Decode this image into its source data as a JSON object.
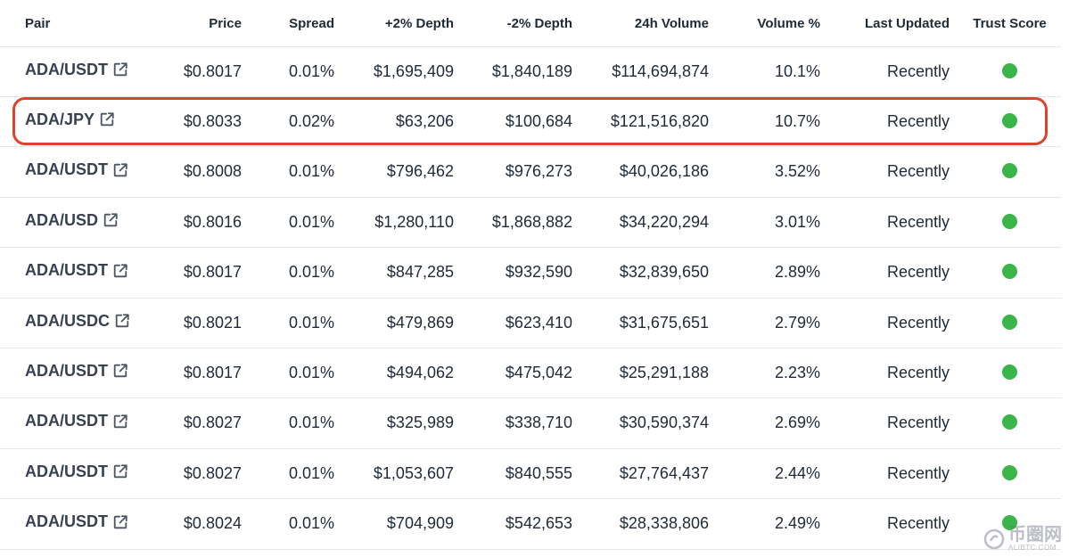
{
  "columns": {
    "pair": "Pair",
    "price": "Price",
    "spread": "Spread",
    "plus_depth": "+2% Depth",
    "minus_depth": "-2% Depth",
    "volume": "24h Volume",
    "volume_pct": "Volume %",
    "last_updated": "Last Updated",
    "trust_score": "Trust Score"
  },
  "rows": [
    {
      "pair": "ADA/USDT",
      "price": "$0.8017",
      "spread": "0.01%",
      "plus_depth": "$1,695,409",
      "minus_depth": "$1,840,189",
      "volume": "$114,694,874",
      "volume_pct": "10.1%",
      "last_updated": "Recently",
      "trust": "green"
    },
    {
      "pair": "ADA/JPY",
      "price": "$0.8033",
      "spread": "0.02%",
      "plus_depth": "$63,206",
      "minus_depth": "$100,684",
      "volume": "$121,516,820",
      "volume_pct": "10.7%",
      "last_updated": "Recently",
      "trust": "green"
    },
    {
      "pair": "ADA/USDT",
      "price": "$0.8008",
      "spread": "0.01%",
      "plus_depth": "$796,462",
      "minus_depth": "$976,273",
      "volume": "$40,026,186",
      "volume_pct": "3.52%",
      "last_updated": "Recently",
      "trust": "green"
    },
    {
      "pair": "ADA/USD",
      "price": "$0.8016",
      "spread": "0.01%",
      "plus_depth": "$1,280,110",
      "minus_depth": "$1,868,882",
      "volume": "$34,220,294",
      "volume_pct": "3.01%",
      "last_updated": "Recently",
      "trust": "green"
    },
    {
      "pair": "ADA/USDT",
      "price": "$0.8017",
      "spread": "0.01%",
      "plus_depth": "$847,285",
      "minus_depth": "$932,590",
      "volume": "$32,839,650",
      "volume_pct": "2.89%",
      "last_updated": "Recently",
      "trust": "green"
    },
    {
      "pair": "ADA/USDC",
      "price": "$0.8021",
      "spread": "0.01%",
      "plus_depth": "$479,869",
      "minus_depth": "$623,410",
      "volume": "$31,675,651",
      "volume_pct": "2.79%",
      "last_updated": "Recently",
      "trust": "green"
    },
    {
      "pair": "ADA/USDT",
      "price": "$0.8017",
      "spread": "0.01%",
      "plus_depth": "$494,062",
      "minus_depth": "$475,042",
      "volume": "$25,291,188",
      "volume_pct": "2.23%",
      "last_updated": "Recently",
      "trust": "green"
    },
    {
      "pair": "ADA/USDT",
      "price": "$0.8027",
      "spread": "0.01%",
      "plus_depth": "$325,989",
      "minus_depth": "$338,710",
      "volume": "$30,590,374",
      "volume_pct": "2.69%",
      "last_updated": "Recently",
      "trust": "green"
    },
    {
      "pair": "ADA/USDT",
      "price": "$0.8027",
      "spread": "0.01%",
      "plus_depth": "$1,053,607",
      "minus_depth": "$840,555",
      "volume": "$27,764,437",
      "volume_pct": "2.44%",
      "last_updated": "Recently",
      "trust": "green"
    },
    {
      "pair": "ADA/USDT",
      "price": "$0.8024",
      "spread": "0.01%",
      "plus_depth": "$704,909",
      "minus_depth": "$542,653",
      "volume": "$28,338,806",
      "volume_pct": "2.49%",
      "last_updated": "Recently",
      "trust": "green"
    }
  ],
  "highlighted_row": 1,
  "colors": {
    "trust_green": "#3ab54a",
    "highlight": "#d9442f"
  },
  "watermark": {
    "main": "币圈网",
    "sub": "ALIBTC.COM"
  }
}
